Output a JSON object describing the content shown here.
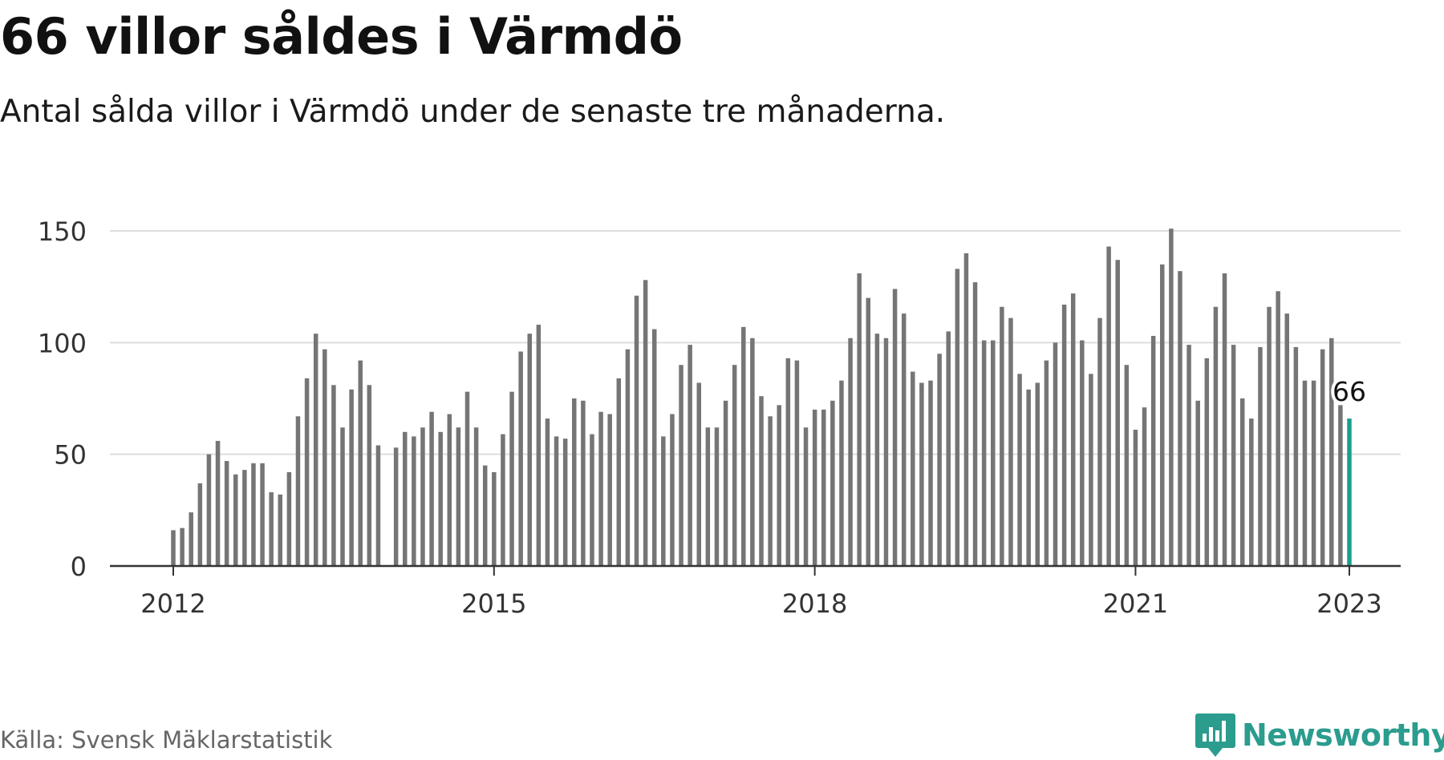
{
  "title": "66 villor såldes i Värmdö",
  "subtitle": "Antal sålda villor i Värmdö under de senaste tre månaderna.",
  "source": "Källa: Svensk Mäklarstatistik",
  "brand": {
    "name": "Newsworthy",
    "icon": "newsworthy-logo-icon",
    "color": "#2b9c8d"
  },
  "chart_data": {
    "type": "bar",
    "x_start": "2012-01",
    "x_end": "2023-01",
    "x_ticks": [
      "2012",
      "2015",
      "2018",
      "2021",
      "2023"
    ],
    "y_ticks": [
      0,
      50,
      100,
      150
    ],
    "ylim": [
      0,
      150
    ],
    "grid": true,
    "bar_color": "#757575",
    "highlight_color": "#1a9e8f",
    "highlight_label": "66",
    "values": [
      16,
      17,
      24,
      37,
      50,
      56,
      47,
      41,
      43,
      46,
      46,
      33,
      32,
      42,
      67,
      84,
      104,
      97,
      81,
      62,
      79,
      92,
      81,
      54,
      null,
      53,
      60,
      58,
      62,
      69,
      60,
      68,
      62,
      78,
      62,
      45,
      42,
      59,
      78,
      96,
      104,
      108,
      66,
      58,
      57,
      75,
      74,
      59,
      69,
      68,
      84,
      97,
      121,
      128,
      106,
      58,
      68,
      90,
      99,
      82,
      62,
      62,
      74,
      90,
      107,
      102,
      76,
      67,
      72,
      93,
      92,
      62,
      70,
      70,
      74,
      83,
      102,
      131,
      120,
      104,
      102,
      124,
      113,
      87,
      82,
      83,
      95,
      105,
      133,
      140,
      127,
      101,
      101,
      116,
      111,
      86,
      79,
      82,
      92,
      100,
      117,
      122,
      101,
      86,
      111,
      143,
      137,
      90,
      61,
      71,
      103,
      135,
      151,
      132,
      99,
      74,
      93,
      116,
      131,
      99,
      75,
      66,
      98,
      116,
      123,
      113,
      98,
      83,
      83,
      97,
      102,
      72,
      66
    ]
  }
}
